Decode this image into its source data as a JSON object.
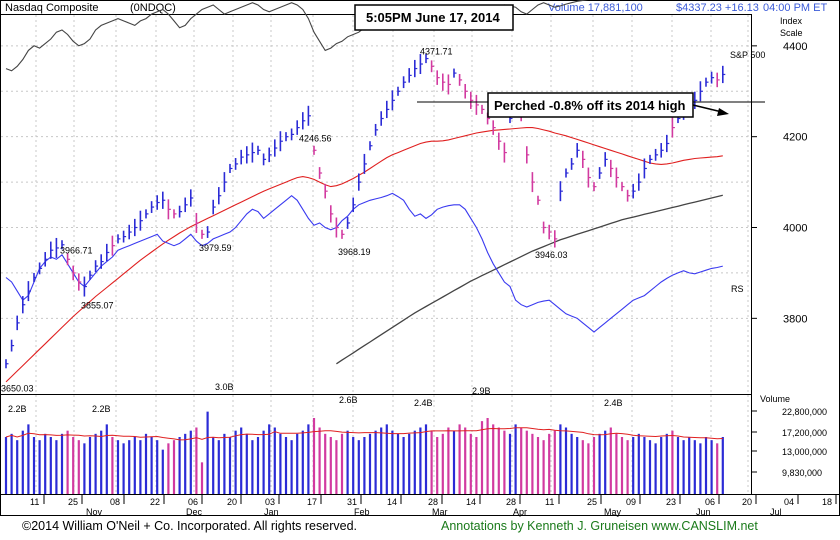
{
  "header": {
    "index_name": "Nasdaq Composite",
    "symbol": "(0NDQC)",
    "volume_label": "Volume 17,881,100",
    "price_label": "$4337.23 +16.13",
    "time_label": "04:00 PM ET",
    "timestamp_box": "5:05PM June 17,  2014"
  },
  "annotation": {
    "text": "Perched -0.8% off its 2014 high"
  },
  "right_labels": {
    "index": "Index",
    "scale": "Scale",
    "sp500": "S&P 500",
    "rs": "RS",
    "volume_title": "Volume"
  },
  "footer": {
    "copyright": "©2014 William O'Neil + Co. Incorporated. All rights reserved.",
    "annotations": "Annotations by Kenneth J. Gruneisen www.CANSLIM.net"
  },
  "colors": {
    "up_bar": "#2b2bd6",
    "down_bar": "#d23aa0",
    "rs_line": "#3a3af0",
    "ma50": "#e02020",
    "ma200": "#444444",
    "sp500": "#444444",
    "grid": "#c8c8c8"
  },
  "chart_data": {
    "type": "bar",
    "price_axis": {
      "ticks": [
        3800,
        4000,
        4200,
        4400
      ],
      "ylim": [
        3640,
        4460
      ]
    },
    "volume_axis": {
      "ticks": [
        "22,800,000",
        "17,200,000",
        "13,000,000",
        "9,830,000"
      ]
    },
    "x_axis": {
      "day_labels": [
        "11",
        "25",
        "08",
        "22",
        "06",
        "20",
        "03",
        "17",
        "31",
        "14",
        "28",
        "14",
        "28",
        "11",
        "25",
        "09",
        "23",
        "06",
        "20",
        "04",
        "18"
      ],
      "month_labels": [
        "Nov",
        "Dec",
        "Jan",
        "Feb",
        "Mar",
        "Apr",
        "May",
        "Jun",
        "Jul"
      ]
    },
    "price_labels": [
      {
        "text": "3650.03",
        "value": 3650.03
      },
      {
        "text": "3966.71",
        "value": 3966.71
      },
      {
        "text": "3855.07",
        "value": 3855.07
      },
      {
        "text": "3979.59",
        "value": 3979.59
      },
      {
        "text": "4246.56",
        "value": 4246.56
      },
      {
        "text": "3968.19",
        "value": 3968.19
      },
      {
        "text": "4371.71",
        "value": 4371.71
      },
      {
        "text": "3946.03",
        "value": 3946.03
      }
    ],
    "volume_labels": [
      "2.2B",
      "2.2B",
      "3.0B",
      "2.6B",
      "2.4B",
      "2.9B",
      "2.4B"
    ],
    "price_series": [
      3700,
      3740,
      3790,
      3830,
      3860,
      3890,
      3910,
      3930,
      3950,
      3955,
      3962,
      3930,
      3900,
      3880,
      3870,
      3895,
      3915,
      3925,
      3945,
      3960,
      3975,
      3980,
      3990,
      4000,
      4015,
      4030,
      4045,
      4055,
      4060,
      4040,
      4030,
      4035,
      4050,
      4065,
      4010,
      3985,
      3990,
      4045,
      4070,
      4100,
      4130,
      4140,
      4155,
      4160,
      4165,
      4170,
      4150,
      4160,
      4175,
      4190,
      4200,
      4205,
      4220,
      4235,
      4246,
      4170,
      4120,
      4080,
      4030,
      4000,
      3985,
      4010,
      4050,
      4100,
      4140,
      4180,
      4215,
      4240,
      4260,
      4280,
      4300,
      4320,
      4335,
      4350,
      4360,
      4372,
      4355,
      4330,
      4320,
      4315,
      4340,
      4325,
      4300,
      4280,
      4270,
      4260,
      4240,
      4220,
      4190,
      4165,
      4240,
      4270,
      4250,
      4160,
      4100,
      4060,
      4000,
      3990,
      3975,
      4080,
      4120,
      4140,
      4170,
      4150,
      4110,
      4090,
      4120,
      4150,
      4130,
      4110,
      4090,
      4070,
      4080,
      4100,
      4130,
      4150,
      4160,
      4170,
      4185,
      4220,
      4240,
      4250,
      4262,
      4280,
      4300,
      4320,
      4330,
      4325,
      4337
    ],
    "down_days": [
      11,
      12,
      13,
      19,
      29,
      30,
      34,
      35,
      55,
      56,
      57,
      58,
      59,
      60,
      76,
      77,
      78,
      79,
      81,
      82,
      83,
      84,
      85,
      86,
      87,
      88,
      89,
      92,
      93,
      94,
      95,
      96,
      97,
      98,
      103,
      104,
      105,
      108,
      109,
      110,
      111,
      119,
      127
    ],
    "rs_series": [
      3890,
      3880,
      3860,
      3840,
      3850,
      3880,
      3910,
      3925,
      3935,
      3930,
      3940,
      3920,
      3900,
      3880,
      3870,
      3885,
      3900,
      3915,
      3925,
      3935,
      3950,
      3955,
      3960,
      3965,
      3970,
      3975,
      3980,
      3985,
      3970,
      3965,
      3960,
      3965,
      3975,
      3985,
      3970,
      3960,
      3965,
      3975,
      3980,
      3985,
      3990,
      4000,
      4015,
      4030,
      4040,
      4035,
      4020,
      4030,
      4040,
      4050,
      4060,
      4070,
      4060,
      4040,
      4020,
      4005,
      4010,
      4000,
      3995,
      4000,
      4015,
      4025,
      4040,
      4050,
      4055,
      4060,
      4063,
      4066,
      4070,
      4075,
      4068,
      4060,
      4040,
      4025,
      4030,
      4020,
      4028,
      4040,
      4045,
      4048,
      4050,
      4050,
      4040,
      4020,
      4000,
      3975,
      3945,
      3920,
      3900,
      3880,
      3870,
      3840,
      3830,
      3825,
      3830,
      3835,
      3838,
      3840,
      3830,
      3820,
      3810,
      3805,
      3800,
      3790,
      3780,
      3770,
      3780,
      3790,
      3800,
      3810,
      3820,
      3830,
      3840,
      3845,
      3850,
      3860,
      3870,
      3880,
      3888,
      3895,
      3900,
      3905,
      3900,
      3898,
      3902,
      3906,
      3910,
      3912,
      3915
    ],
    "sp500_series": [
      4350,
      4345,
      4355,
      4370,
      4390,
      4400,
      4395,
      4405,
      4415,
      4430,
      4435,
      4425,
      4410,
      4400,
      4405,
      4415,
      4435,
      4445,
      4450,
      4455,
      4460,
      4455,
      4450,
      4445,
      4455,
      4460,
      4470,
      4475,
      4480,
      4470,
      4455,
      4440,
      4445,
      4460,
      4470,
      4480,
      4485,
      4490,
      4480,
      4470,
      4475,
      4480,
      4485,
      4490,
      4495,
      4490,
      4480,
      4475,
      4480,
      4485,
      4490,
      4495,
      4490,
      4480,
      4460,
      4430,
      4410,
      4390,
      4395,
      4405,
      4410,
      4420,
      4425,
      4430,
      4440,
      4450,
      4455,
      4460,
      4465,
      4470,
      4475,
      4478,
      4480,
      4485,
      4488,
      4490,
      4486,
      4480,
      4475,
      4478,
      4482,
      4485,
      4480,
      4470,
      4465,
      4470,
      4475,
      4480,
      4485,
      4490,
      4488,
      4485,
      4475,
      4470,
      4480,
      4490,
      4495,
      4490,
      4485,
      4488,
      4492,
      4495,
      4498,
      4500,
      4502,
      4505,
      4510,
      4512,
      4515,
      4518,
      4522,
      4525,
      4528,
      4530,
      4532,
      4535,
      4538,
      4540,
      4542,
      4545,
      4548,
      4552,
      4555,
      4558,
      4560,
      4558,
      4555,
      4558,
      4562
    ],
    "ma50_series": [
      3660,
      3672,
      3684,
      3696,
      3708,
      3720,
      3732,
      3744,
      3756,
      3768,
      3780,
      3792,
      3804,
      3815,
      3826,
      3837,
      3848,
      3858,
      3868,
      3878,
      3888,
      3898,
      3908,
      3918,
      3928,
      3937,
      3946,
      3955,
      3964,
      3972,
      3980,
      3988,
      3995,
      4002,
      4008,
      4014,
      4020,
      4026,
      4032,
      4038,
      4044,
      4050,
      4056,
      4062,
      4068,
      4074,
      4080,
      4085,
      4090,
      4095,
      4100,
      4105,
      4110,
      4112,
      4110,
      4106,
      4100,
      4094,
      4090,
      4092,
      4096,
      4102,
      4108,
      4115,
      4122,
      4130,
      4138,
      4146,
      4154,
      4160,
      4165,
      4170,
      4175,
      4180,
      4185,
      4188,
      4190,
      4190,
      4191,
      4193,
      4196,
      4199,
      4202,
      4205,
      4208,
      4210,
      4212,
      4214,
      4215,
      4216,
      4217,
      4218,
      4219,
      4220,
      4220,
      4218,
      4215,
      4212,
      4208,
      4205,
      4202,
      4198,
      4194,
      4190,
      4186,
      4182,
      4178,
      4174,
      4170,
      4166,
      4162,
      4158,
      4154,
      4150,
      4146,
      4142,
      4140,
      4139,
      4140,
      4142,
      4145,
      4148,
      4150,
      4152,
      4153,
      4154,
      4155,
      4156,
      4158
    ],
    "ma200_series": [
      3700,
      3708,
      3716,
      3724,
      3732,
      3740,
      3748,
      3756,
      3764,
      3772,
      3780,
      3788,
      3796,
      3804,
      3812,
      3819,
      3826,
      3833,
      3840,
      3847,
      3854,
      3861,
      3868,
      3875,
      3882,
      3888,
      3894,
      3900,
      3906,
      3912,
      3918,
      3924,
      3930,
      3936,
      3942,
      3948,
      3953,
      3958,
      3963,
      3968,
      3973,
      3977,
      3981,
      3985,
      3989,
      3993,
      3997,
      4001,
      4005,
      4009,
      4013,
      4017,
      4020,
      4023,
      4026,
      4029,
      4032,
      4035,
      4038,
      4041,
      4044,
      4047,
      4050,
      4053,
      4056,
      4059,
      4062,
      4065,
      4068,
      4071
    ],
    "volume_series": [
      18,
      19,
      17,
      20,
      22,
      18,
      17,
      19,
      18,
      17,
      19,
      20,
      18,
      17,
      16,
      18,
      19,
      20,
      22,
      18,
      17,
      16,
      17,
      18,
      17,
      19,
      18,
      17,
      14,
      16,
      17,
      18,
      19,
      20,
      21,
      10,
      26,
      18,
      17,
      19,
      18,
      20,
      21,
      19,
      17,
      18,
      20,
      22,
      21,
      19,
      18,
      17,
      19,
      20,
      22,
      24,
      21,
      19,
      18,
      17,
      19,
      20,
      18,
      17,
      18,
      19,
      20,
      21,
      22,
      20,
      19,
      18,
      19,
      20,
      21,
      22,
      20,
      18,
      19,
      21,
      20,
      22,
      21,
      19,
      18,
      23,
      24,
      22,
      21,
      20,
      19,
      22,
      21,
      20,
      19,
      18,
      17,
      19,
      20,
      22,
      21,
      19,
      18,
      17,
      16,
      18,
      19,
      20,
      21,
      19,
      18,
      17,
      18,
      19,
      18,
      17,
      16,
      18,
      19,
      20,
      18,
      17,
      18,
      17,
      16,
      18,
      17,
      16,
      18
    ]
  }
}
